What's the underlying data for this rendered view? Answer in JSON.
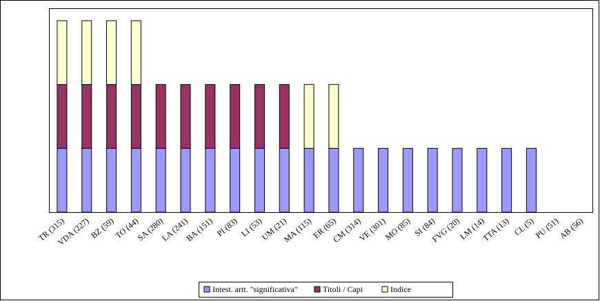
{
  "chart_data": {
    "type": "stacked_bar",
    "categories": [
      "TR (315)",
      "VDA (227)",
      "BZ (59)",
      "TO (44)",
      "SA (280)",
      "LA (241)",
      "BA (151)",
      "PI (83)",
      "LI (53)",
      "UM (21)",
      "MA (115)",
      "ER (65)",
      "CM (314)",
      "VE (301)",
      "MO (85)",
      "SI (84)",
      "FVG (20)",
      "LM (14)",
      "TTA (13)",
      "CL (5)",
      "PU (51)",
      "AB (56)"
    ],
    "series": [
      {
        "name": "Intest. artt. \"significativa\"",
        "color": "#9999ff",
        "values": [
          1,
          1,
          1,
          1,
          1,
          1,
          1,
          1,
          1,
          1,
          1,
          1,
          1,
          1,
          1,
          1,
          1,
          1,
          1,
          1,
          0,
          0
        ]
      },
      {
        "name": "Titoli / Capi",
        "color": "#993366",
        "values": [
          1,
          1,
          1,
          1,
          1,
          1,
          1,
          1,
          1,
          1,
          0,
          0,
          0,
          0,
          0,
          0,
          0,
          0,
          0,
          0,
          0,
          0
        ]
      },
      {
        "name": "Indice",
        "color": "#ffffcc",
        "values": [
          1,
          1,
          1,
          1,
          0,
          0,
          0,
          0,
          0,
          0,
          1,
          1,
          0,
          0,
          0,
          0,
          0,
          0,
          0,
          0,
          0,
          0
        ]
      }
    ],
    "ylim": [
      0,
      3
    ]
  }
}
